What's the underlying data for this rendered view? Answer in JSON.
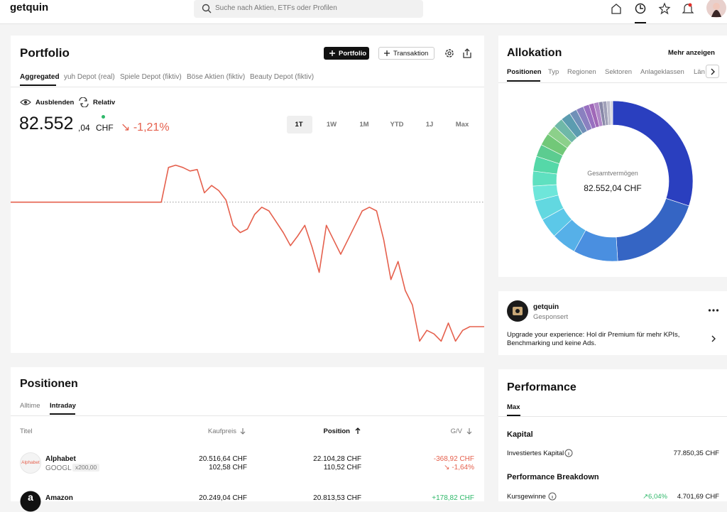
{
  "header": {
    "logo": "getquin",
    "search_placeholder": "Suche nach Aktien, ETFs oder Profilen"
  },
  "portfolio": {
    "title": "Portfolio",
    "buttons": [
      "Portfolio",
      "Transaktion"
    ],
    "tabs": [
      "Aggregated",
      "yuh Depot (real)",
      "Spiele Depot (fiktiv)",
      "Böse Aktien (fiktiv)",
      "Beauty Depot (fiktiv)"
    ],
    "toggles": [
      "Ausblenden",
      "Relativ"
    ],
    "value_main": "82.552",
    "value_decimals": ",04",
    "currency": "CHF",
    "change": "↘ -1,21%",
    "ranges": [
      "1T",
      "1W",
      "1M",
      "YTD",
      "1J",
      "Max"
    ],
    "chart": {
      "type": "line",
      "color": "#e5604d",
      "reference_line": 83563,
      "ylim": [
        82350,
        84080
      ],
      "values": [
        83563,
        83563,
        83563,
        83563,
        83563,
        83563,
        83563,
        83563,
        83563,
        83563,
        83563,
        83563,
        83563,
        83563,
        83563,
        83563,
        83563,
        83563,
        83563,
        83563,
        83563,
        83563,
        83845,
        83863,
        83845,
        83816,
        83828,
        83639,
        83698,
        83657,
        83581,
        83375,
        83316,
        83345,
        83463,
        83522,
        83492,
        83404,
        83316,
        83210,
        83287,
        83375,
        83198,
        82993,
        83375,
        83257,
        83140,
        83257,
        83375,
        83492,
        83522,
        83492,
        83257,
        82934,
        83081,
        82846,
        82728,
        82434,
        82522,
        82493,
        82434,
        82581,
        82434,
        82522,
        82552,
        82552,
        82552
      ]
    }
  },
  "allocation": {
    "title": "Allokation",
    "more": "Mehr anzeigen",
    "tabs": [
      "Positionen",
      "Typ",
      "Regionen",
      "Sektoren",
      "Anlageklassen",
      "Län"
    ],
    "center_label": "Gesamtvermögen",
    "center_value": "82.552,04 CHF",
    "chart": {
      "type": "pie",
      "values": [
        30,
        19,
        9,
        5,
        4,
        4,
        3,
        3,
        3,
        2.5,
        2.5,
        2,
        2,
        2,
        1.5,
        1.5,
        1.2,
        1,
        1,
        0.8,
        0.8,
        0.7,
        0.5
      ],
      "colors": [
        "#2a3fbf",
        "#3565c4",
        "#4a8fe0",
        "#56b0e8",
        "#5cc8e8",
        "#62d8e0",
        "#6ee6da",
        "#5fe0c0",
        "#55d8a8",
        "#5ccc90",
        "#72c878",
        "#8cd08a",
        "#6fb8a8",
        "#5c9cb0",
        "#7090b8",
        "#8a80c0",
        "#9870c0",
        "#a068b8",
        "#b088c8",
        "#8888a8",
        "#a0a0b8",
        "#c0c0d0",
        "#d8d8e0"
      ]
    }
  },
  "ad": {
    "name": "getquin",
    "sponsored": "Gesponsert",
    "text": "Upgrade your experience: Hol dir Premium für mehr KPIs, Benchmarking und keine Ads."
  },
  "positions": {
    "title": "Positionen",
    "tabs": [
      "Alltime",
      "Intraday"
    ],
    "columns": [
      "Titel",
      "Kaufpreis",
      "Position",
      "G/V"
    ],
    "rows": [
      {
        "logo": "Alphabet",
        "name": "Alphabet",
        "ticker": "GOOGL",
        "quantity": "x200,00",
        "buy_total": "20.516,64 CHF",
        "buy_unit": "102,58 CHF",
        "position_total": "22.104,28 CHF",
        "position_unit": "110,52 CHF",
        "pl": "-368,92 CHF",
        "pl_pct": "↘ -1,64%"
      },
      {
        "logo": "a",
        "name": "Amazon",
        "buy_total": "20.249,04 CHF",
        "position_total": "20.813,53 CHF",
        "pl": "+178,82 CHF"
      }
    ]
  },
  "performance": {
    "title": "Performance",
    "tab": "Max",
    "capital_heading": "Kapital",
    "invested_label": "Investiertes Kapital",
    "invested_value": "77.850,35 CHF",
    "breakdown_heading": "Performance Breakdown",
    "gains_label": "Kursgewinne",
    "gains_pct": "↗6,04%",
    "gains_value": "4.701,69 CHF"
  }
}
